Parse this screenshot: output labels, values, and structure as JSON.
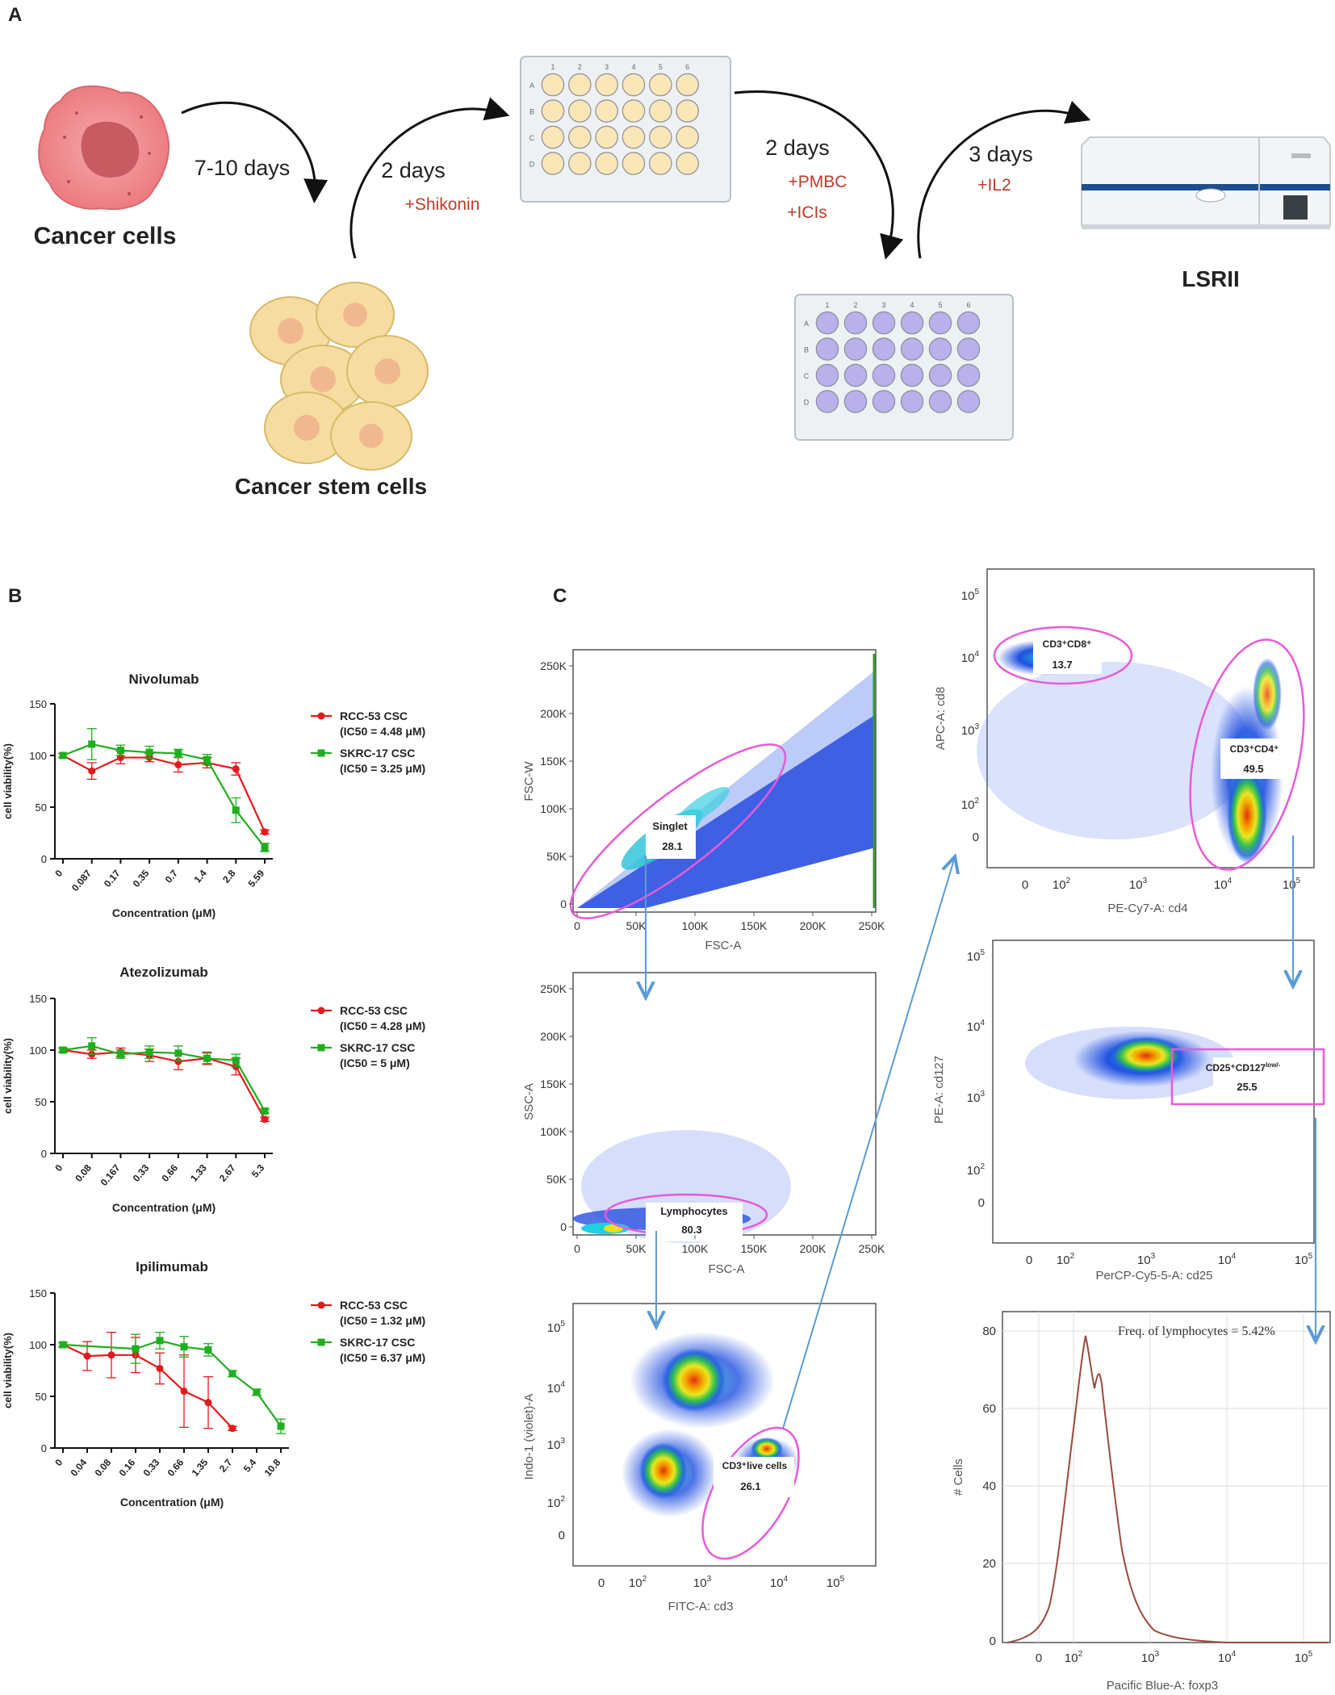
{
  "colors": {
    "red": "#e31a1c",
    "green": "#1fae1f",
    "pink": "#e85ad8",
    "blue_arrow": "#5b9bd5",
    "plate_yellow": "#fbe6b8",
    "plate_purple": "#b9b0ec",
    "cell_pink": "#f08a8e",
    "stem_yellow": "#f6dca0",
    "hist_line": "#9b4a3c"
  },
  "panelA": {
    "label": "A",
    "cancer_cells": "Cancer cells",
    "step1_days": "7-10 days",
    "cancer_stem_cells": "Cancer stem cells",
    "step2_days": "2 days",
    "step2_add": "+Shikonin",
    "step3_days": "2 days",
    "step3_add1": "+PMBC",
    "step3_add2": "+ICIs",
    "step4_days": "3 days",
    "step4_add": "+IL2",
    "instrument": "LSRII",
    "plate_cols": [
      "1",
      "2",
      "3",
      "4",
      "5",
      "6"
    ],
    "plate_rows": [
      "A",
      "B",
      "C",
      "D"
    ]
  },
  "panelB": {
    "label": "B",
    "ylabel": "cell viability(%)",
    "xlabel": "Concentration (μM)"
  },
  "chart_data": [
    {
      "type": "line",
      "title": "Nivolumab",
      "categories": [
        "0",
        "0.087",
        "0.17",
        "0.35",
        "0.7",
        "1.4",
        "2.8",
        "5.59"
      ],
      "ylim": [
        0,
        150
      ],
      "yticks": [
        "0",
        "50",
        "100",
        "150"
      ],
      "series": [
        {
          "name": "RCC-53 CSC",
          "ic50": "(IC50 = 4.48 μM)",
          "values": [
            100,
            85,
            98,
            98,
            91,
            93,
            87,
            26
          ],
          "err": [
            2,
            8,
            6,
            4,
            7,
            5,
            6,
            2
          ]
        },
        {
          "name": "SKRC-17 CSC",
          "ic50": "(IC50 = 3.25 μM)",
          "values": [
            100,
            111,
            105,
            103,
            102,
            96,
            47,
            11
          ],
          "err": [
            2,
            15,
            5,
            6,
            4,
            5,
            12,
            4
          ]
        }
      ]
    },
    {
      "type": "line",
      "title": "Atezolizumab",
      "categories": [
        "0",
        "0.08",
        "0.167",
        "0.33",
        "0.66",
        "1.33",
        "2.67",
        "5.3"
      ],
      "ylim": [
        0,
        150
      ],
      "yticks": [
        "0",
        "50",
        "100",
        "150"
      ],
      "series": [
        {
          "name": "RCC-53 CSC",
          "ic50": "(IC50 = 4.28 μM)",
          "values": [
            100,
            96,
            98,
            95,
            89,
            92,
            84,
            33
          ],
          "err": [
            2,
            4,
            4,
            6,
            8,
            6,
            8,
            2
          ]
        },
        {
          "name": "SKRC-17 CSC",
          "ic50": "(IC50 = 5 μM)",
          "values": [
            100,
            104,
            96,
            98,
            97,
            92,
            90,
            41
          ],
          "err": [
            2,
            8,
            4,
            6,
            7,
            5,
            6,
            2
          ]
        }
      ]
    },
    {
      "type": "line",
      "title": "Ipilimumab",
      "categories": [
        "0",
        "0.04",
        "0.08",
        "0.16",
        "0.33",
        "0.66",
        "1.35",
        "2.7",
        "5.4",
        "10.8"
      ],
      "ylim": [
        0,
        150
      ],
      "yticks": [
        "0",
        "50",
        "100",
        "150"
      ],
      "series": [
        {
          "name": "RCC-53 CSC",
          "ic50": "(IC50 = 1.32 μM)",
          "values": [
            100,
            89,
            90,
            90,
            77,
            55,
            44,
            19,
            null,
            null
          ],
          "err": [
            2,
            14,
            22,
            17,
            15,
            35,
            25,
            2,
            0,
            0
          ]
        },
        {
          "name": "SKRC-17 CSC",
          "ic50": "(IC50 = 6.37 μM)",
          "values": [
            100,
            null,
            null,
            96,
            104,
            98,
            95,
            72,
            54,
            21
          ],
          "err": [
            2,
            0,
            0,
            14,
            8,
            10,
            6,
            3,
            3,
            7
          ]
        }
      ]
    }
  ],
  "panelC": {
    "label": "C",
    "plot1": {
      "ylabel": "FSC-W",
      "xlabel": "FSC-A",
      "gate": "Singlet",
      "value": "28.1",
      "yticks": [
        "0",
        "50K",
        "100K",
        "150K",
        "200K",
        "250K"
      ],
      "xticks": [
        "0",
        "50K",
        "100K",
        "150K",
        "200K",
        "250K"
      ]
    },
    "plot2": {
      "ylabel": "SSC-A",
      "xlabel": "FSC-A",
      "gate": "Lymphocytes",
      "value": "80.3",
      "yticks": [
        "0",
        "50K",
        "100K",
        "150K",
        "200K",
        "250K"
      ],
      "xticks": [
        "0",
        "50K",
        "100K",
        "150K",
        "200K",
        "250K"
      ]
    },
    "plot3": {
      "ylabel": "Indo-1 (violet)-A",
      "xlabel": "FITC-A: cd3",
      "gate": "CD3⁺live cells",
      "value": "26.1"
    },
    "plot4": {
      "ylabel": "APC-A: cd8",
      "xlabel": "PE-Cy7-A: cd4",
      "gate1": "CD3⁺CD8⁺",
      "value1": "13.7",
      "gate2": "CD3⁺CD4⁺",
      "value2": "49.5"
    },
    "plot5": {
      "ylabel": "PE-A: cd127",
      "xlabel": "PerCP-Cy5-5-A: cd25",
      "gate": "CD25⁺CD127",
      "gate_sup": "low/-",
      "value": "25.5"
    },
    "plot6": {
      "ylabel": "# Cells",
      "xlabel": "Pacific Blue-A: foxp3",
      "freq": "Freq. of lymphocytes = 5.42%",
      "yticks": [
        "0",
        "20",
        "40",
        "60",
        "80"
      ]
    },
    "log_ticks": {
      "zero": "0",
      "base": "10",
      "exps": [
        "2",
        "3",
        "4",
        "5"
      ]
    }
  }
}
